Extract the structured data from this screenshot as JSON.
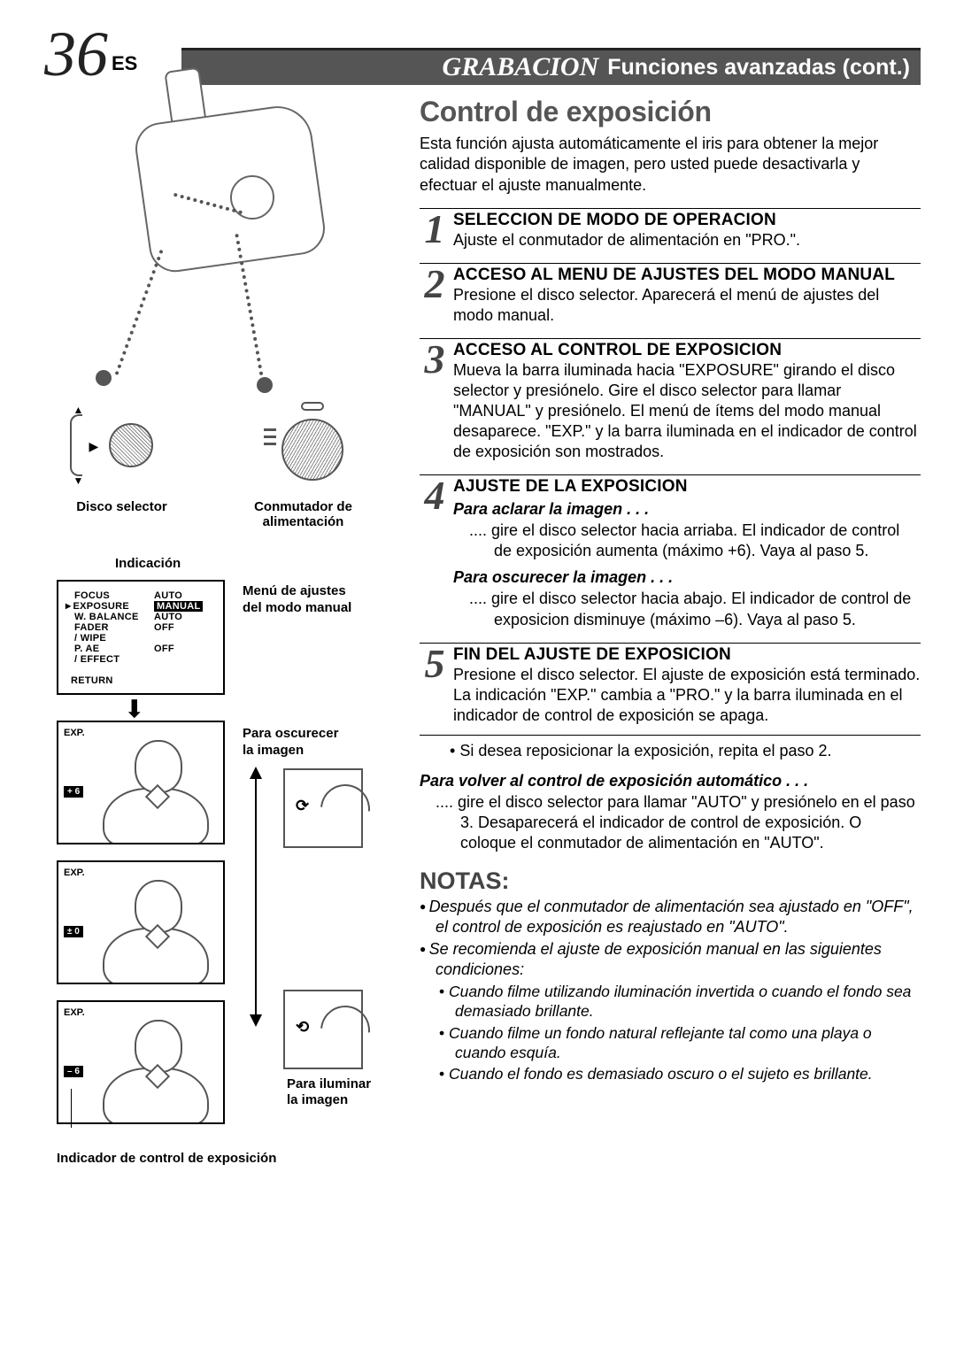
{
  "header": {
    "page_number": "36",
    "lang": "ES",
    "title_emph": "GRABACION",
    "title_rest": "Funciones avanzadas (cont.)"
  },
  "left": {
    "disco_label": "Disco selector",
    "conmutador_label_1": "Conmutador de",
    "conmutador_label_2": "alimentación",
    "indicacion": "Indicación",
    "menu_caption_1": "Menú de ajustes",
    "menu_caption_2": "del modo manual",
    "menu": {
      "items": [
        {
          "left": "FOCUS",
          "right": "AUTO",
          "selected": false,
          "inverse": false
        },
        {
          "left": "EXPOSURE",
          "right": "MANUAL",
          "selected": true,
          "inverse": true
        },
        {
          "left": "W. BALANCE",
          "right": "AUTO",
          "selected": false,
          "inverse": false
        },
        {
          "left": "FADER",
          "right": "OFF",
          "selected": false,
          "inverse": false
        },
        {
          "left": "  / WIPE",
          "right": "",
          "selected": false,
          "inverse": false
        },
        {
          "left": "P. AE",
          "right": "OFF",
          "selected": false,
          "inverse": false
        },
        {
          "left": "  / EFFECT",
          "right": "",
          "selected": false,
          "inverse": false
        }
      ],
      "return": "RETURN"
    },
    "exp_label": "EXP.",
    "exp_vals": [
      "+ 6",
      "± 0",
      "– 6"
    ],
    "oscurecer_1": "Para oscurecer",
    "oscurecer_2": "la imagen",
    "iluminar_1": "Para iluminar",
    "iluminar_2": "la imagen",
    "indicator_caption": "Indicador de control de exposición"
  },
  "right": {
    "section_title": "Control de exposición",
    "section_desc": "Esta función ajusta automáticamente el iris para obtener la mejor calidad disponible de imagen, pero usted puede desactivarla y efectuar el ajuste manualmente.",
    "steps": [
      {
        "n": "1",
        "title": "SELECCION DE MODO DE OPERACION",
        "text": "Ajuste el conmutador de alimentación en \"PRO.\"."
      },
      {
        "n": "2",
        "title": "ACCESO AL MENU DE AJUSTES DEL MODO MANUAL",
        "text": "Presione el disco selector. Aparecerá el menú de ajustes del modo manual."
      },
      {
        "n": "3",
        "title": "ACCESO AL CONTROL DE EXPOSICION",
        "text": "Mueva la barra iluminada hacia \"EXPOSURE\" girando el disco selector y presiónelo. Gire el disco selector para llamar \"MANUAL\" y presiónelo. El menú de ítems del modo manual desaparece. \"EXP.\" y la barra iluminada en el indicador de control de exposición son mostrados."
      },
      {
        "n": "4",
        "title": "AJUSTE DE LA EXPOSICION",
        "sub1_title": "Para aclarar la imagen . . .",
        "sub1_text": "gire el disco selector hacia arriaba. El indicador de control de exposición aumenta (máximo +6). Vaya al paso 5.",
        "sub2_title": "Para oscurecer la imagen . . .",
        "sub2_text": "gire el disco selector hacia abajo. El indicador de control de exposicion disminuye (máximo –6). Vaya al paso 5."
      },
      {
        "n": "5",
        "title": "FIN DEL AJUSTE DE EXPOSICION",
        "text": "Presione el disco selector. El ajuste de exposición está terminado. La indicación \"EXP.\" cambia a \"PRO.\" y la barra iluminada en el indicador de control de exposición se apaga."
      }
    ],
    "bullet_after_5": "Si desea reposicionar la exposición, repita el paso 2.",
    "auto_title": "Para volver al control de exposición automático . . .",
    "auto_text": "gire el disco selector para llamar \"AUTO\" y presiónelo en el paso 3. Desaparecerá el indicador de control de exposición. O coloque el conmutador de alimentación en \"AUTO\".",
    "notas_title": "NOTAS:",
    "notas": [
      "Después que el conmutador de alimentación sea ajustado en \"OFF\", el control de exposición es reajustado en \"AUTO\".",
      "Se recomienda el ajuste de exposición manual en las siguientes condiciones:"
    ],
    "notas_subs": [
      "Cuando filme utilizando iluminación invertida o cuando el fondo sea demasiado brillante.",
      "Cuando filme un fondo natural reflejante tal como una playa o cuando esquía.",
      "Cuando el fondo es demasiado oscuro o el sujeto es brillante."
    ]
  },
  "colors": {
    "header_bar_bg": "#555555",
    "accent_gray": "#555555"
  }
}
